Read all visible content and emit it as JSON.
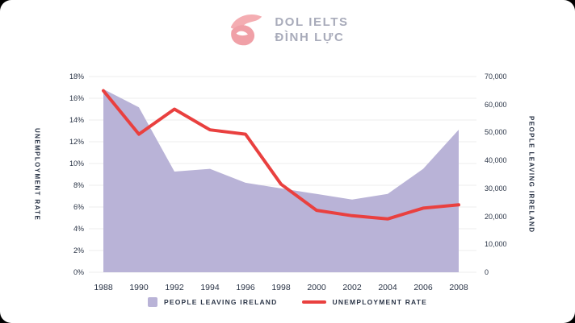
{
  "logo": {
    "line1": "DOL IELTS",
    "line2": "ĐÌNH LỰC",
    "brand_pink": "#f2a6ab",
    "text_color": "#a8abba"
  },
  "chart_data": {
    "type": "combo-area-line",
    "categories": [
      "1988",
      "1990",
      "1992",
      "1994",
      "1996",
      "1998",
      "2000",
      "2002",
      "2004",
      "2006",
      "2008"
    ],
    "series": [
      {
        "name": "PEOPLE LEAVING IRELAND",
        "type": "area",
        "axis": "right",
        "color": "#b9b3d7",
        "values": [
          65500,
          59000,
          36000,
          37000,
          32000,
          30000,
          28000,
          26000,
          28000,
          37000,
          51000
        ]
      },
      {
        "name": "UNEMPLOYMENT RATE",
        "type": "line",
        "axis": "left",
        "color": "#e9403f",
        "values": [
          16.7,
          12.7,
          15.0,
          13.1,
          12.7,
          8.1,
          5.7,
          5.2,
          4.9,
          5.9,
          6.2
        ]
      }
    ],
    "left_axis": {
      "title": "UNEMPLOYMENT RATE",
      "min": 0,
      "max": 18,
      "tick_labels": [
        "18%",
        "16%",
        "14%",
        "12%",
        "10%",
        "8%",
        "6%",
        "4%",
        "2%",
        "0%"
      ]
    },
    "right_axis": {
      "title": "PEOPLE LEAVING IRRELAND",
      "min": 0,
      "max": 70000,
      "tick_labels": [
        "70,000",
        "60,000",
        "50,000",
        "40,000",
        "30,000",
        "20,000",
        "10,000",
        "0"
      ]
    },
    "legend": [
      {
        "label": "PEOPLE LEAVING IRELAND",
        "swatch": "square",
        "color": "#b9b3d7"
      },
      {
        "label": "UNEMPLOYMENT RATE",
        "swatch": "line",
        "color": "#e9403f"
      }
    ],
    "grid": "horizontal",
    "grid_color": "#ededed",
    "legend_position": "bottom-center"
  }
}
